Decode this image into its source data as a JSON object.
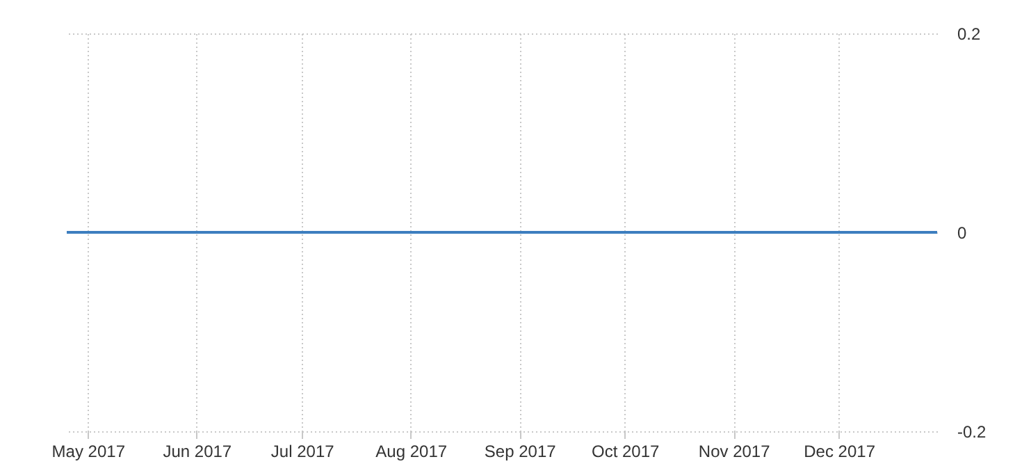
{
  "chart_data": {
    "type": "line",
    "x": [
      "2017-04-25",
      "2017-05-01",
      "2017-06-01",
      "2017-07-01",
      "2017-08-01",
      "2017-09-01",
      "2017-10-01",
      "2017-11-01",
      "2017-12-01",
      "2017-12-29"
    ],
    "series": [
      {
        "color": "#3d7ebf",
        "values": [
          0,
          0,
          0,
          0,
          0,
          0,
          0,
          0,
          0,
          0
        ]
      }
    ],
    "xlim": [
      "2017-04-25",
      "2017-12-29"
    ],
    "xticks": [
      {
        "value": "2017-05-01",
        "label": "May 2017"
      },
      {
        "value": "2017-06-01",
        "label": "Jun 2017"
      },
      {
        "value": "2017-07-01",
        "label": "Jul 2017"
      },
      {
        "value": "2017-08-01",
        "label": "Aug 2017"
      },
      {
        "value": "2017-09-01",
        "label": "Sep 2017"
      },
      {
        "value": "2017-10-01",
        "label": "Oct 2017"
      },
      {
        "value": "2017-11-01",
        "label": "Nov 2017"
      },
      {
        "value": "2017-12-01",
        "label": "Dec 2017"
      }
    ],
    "ylim": [
      -0.2,
      0.2
    ],
    "yticks": [
      -0.2,
      0,
      0.2
    ],
    "grid": true
  }
}
